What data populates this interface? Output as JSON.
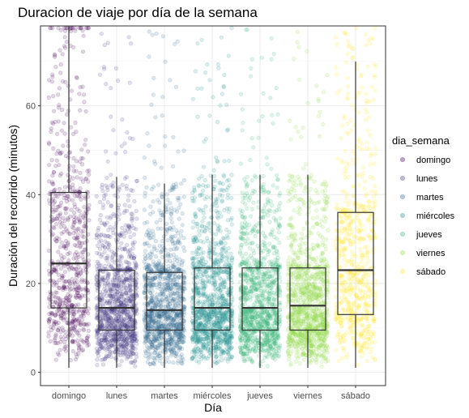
{
  "chart_data": {
    "type": "box-jitter",
    "title": "Duracion de viaje por día de la semana",
    "xlabel": "Día",
    "ylabel": "Duración del recorrido (minutos)",
    "ylim": [
      -3,
      78
    ],
    "yticks": [
      0,
      20,
      40,
      60
    ],
    "grid": true,
    "legend": {
      "title": "dia_semana",
      "placement": "right",
      "entries": [
        "domingo",
        "lunes",
        "martes",
        "miércoles",
        "jueves",
        "viernes",
        "sábado"
      ]
    },
    "categories": [
      "domingo",
      "lunes",
      "martes",
      "miércoles",
      "jueves",
      "viernes",
      "sábado"
    ],
    "colors": [
      "#440154",
      "#443983",
      "#31688e",
      "#21908c",
      "#35b779",
      "#8fd744",
      "#fde725"
    ],
    "boxes": [
      {
        "day": "domingo",
        "whisker_low": 1,
        "q1": 14.5,
        "median": 24.5,
        "q3": 40.5,
        "whisker_high": 78
      },
      {
        "day": "lunes",
        "whisker_low": 1,
        "q1": 9.5,
        "median": 14.5,
        "q3": 23,
        "whisker_high": 44
      },
      {
        "day": "martes",
        "whisker_low": 1,
        "q1": 9.5,
        "median": 14,
        "q3": 22.5,
        "whisker_high": 42.5
      },
      {
        "day": "miércoles",
        "whisker_low": 1,
        "q1": 9.5,
        "median": 14.5,
        "q3": 23.5,
        "whisker_high": 44.5
      },
      {
        "day": "jueves",
        "whisker_low": 1,
        "q1": 9.5,
        "median": 14.5,
        "q3": 23.5,
        "whisker_high": 44.5
      },
      {
        "day": "viernes",
        "whisker_low": 1,
        "q1": 9.5,
        "median": 15,
        "q3": 23.5,
        "whisker_high": 44.5
      },
      {
        "day": "sábado",
        "whisker_low": 1,
        "q1": 13,
        "median": 23,
        "q3": 36,
        "whisker_high": 70
      }
    ]
  }
}
